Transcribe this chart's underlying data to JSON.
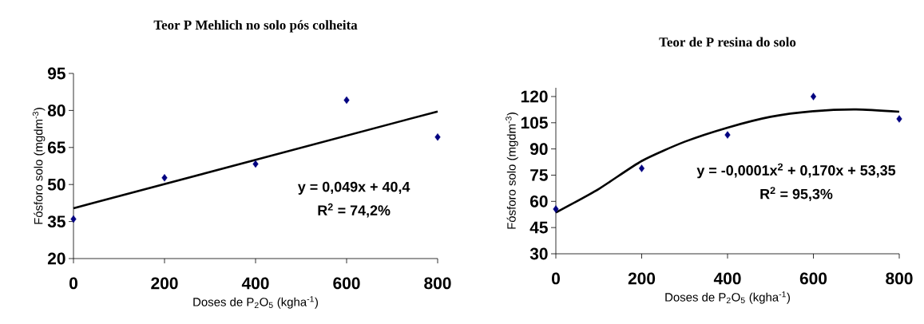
{
  "chart_data": [
    {
      "type": "scatter",
      "title": "Teor P Mehlich no solo  pós colheita",
      "xlabel": "Doses de P$_{2}$O$_{5}$ (kgha$^{-1}$)",
      "ylabel": "Fósforo solo (mgdm$^{-3}$)",
      "x": [
        0,
        200,
        400,
        600,
        800
      ],
      "xlim": [
        0,
        800
      ],
      "xticks": [
        0,
        200,
        400,
        600,
        800
      ],
      "ylim": [
        20,
        95
      ],
      "yticks": [
        20,
        35,
        50,
        65,
        80,
        95
      ],
      "series": [
        {
          "marker": "diamond",
          "color": "#000080",
          "values": [
            36,
            52.7,
            58.3,
            84.2,
            69.2
          ]
        },
        {
          "type": "line",
          "marker": "none",
          "color": "#000000",
          "x": [
            0,
            800
          ],
          "values": [
            40.4,
            79.6
          ]
        }
      ],
      "annotations": [
        "y = 0,049x + 40,4",
        "R$^{2}$ = 74,2%"
      ]
    },
    {
      "type": "scatter",
      "title": "Teor de P resina do solo",
      "xlabel": "Doses de P$_{2}$O$_{5}$ (kgha$^{-1}$)",
      "ylabel": "Fósforo solo (mgdm$^{-3}$)",
      "x": [
        0,
        200,
        400,
        600,
        800
      ],
      "xlim": [
        0,
        800
      ],
      "xticks": [
        0,
        200,
        400,
        600,
        800
      ],
      "ylim": [
        30,
        125
      ],
      "yticks": [
        30,
        45,
        60,
        75,
        90,
        105,
        120
      ],
      "series": [
        {
          "marker": "diamond",
          "color": "#000080",
          "values": [
            55.6,
            78.9,
            98,
            120,
            107.2
          ]
        },
        {
          "type": "line",
          "marker": "none",
          "color": "#000000",
          "x": [
            0,
            100,
            200,
            300,
            400,
            500,
            600,
            700,
            800
          ],
          "values": [
            53.6,
            67.1,
            83.1,
            94.1,
            102.2,
            108.4,
            111.6,
            112.6,
            111.3
          ]
        }
      ],
      "annotations": [
        "y = -0,0001x$^{2}$ + 0,170x + 53,35",
        "R$^{2}$ = 95,3%"
      ]
    }
  ]
}
